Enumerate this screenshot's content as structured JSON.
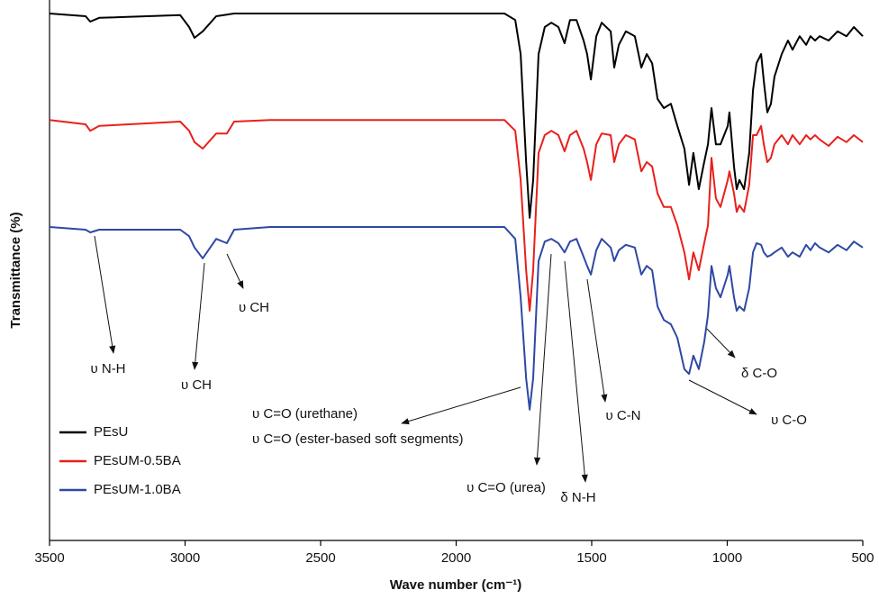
{
  "chart_data": {
    "type": "line",
    "xlabel": "Wave number (cm⁻¹)",
    "ylabel": "Transmittance (%)",
    "xlim": [
      3500,
      500
    ],
    "xticks": [
      3500,
      3000,
      2500,
      2000,
      1500,
      1000,
      500
    ],
    "ylim": [
      0,
      100
    ],
    "legend": "lower left",
    "x": [
      3500,
      3367,
      3350,
      3317,
      3018,
      2985,
      2965,
      2935,
      2885,
      2846,
      2819,
      2686,
      1822,
      1782,
      1762,
      1742,
      1729,
      1716,
      1696,
      1673,
      1649,
      1623,
      1600,
      1580,
      1556,
      1530,
      1517,
      1503,
      1483,
      1463,
      1430,
      1417,
      1400,
      1374,
      1341,
      1317,
      1297,
      1277,
      1257,
      1234,
      1208,
      1184,
      1158,
      1141,
      1125,
      1105,
      1085,
      1071,
      1058,
      1042,
      1025,
      998,
      992,
      975,
      965,
      955,
      938,
      919,
      905,
      892,
      875,
      865,
      852,
      839,
      826,
      799,
      776,
      759,
      733,
      709,
      693,
      676,
      659,
      626,
      593,
      560,
      533,
      500
    ],
    "series": [
      {
        "name": "PEsU",
        "color": "#000000",
        "values": [
          97.5,
          97,
          96,
          96.7,
          97.2,
          95,
          93,
          94.2,
          97,
          97.3,
          97.5,
          97.5,
          97.5,
          96.3,
          90,
          70,
          59.7,
          66.7,
          90,
          95,
          95.8,
          95,
          92,
          96.3,
          96.3,
          92.5,
          90,
          85.3,
          93.3,
          95.8,
          94.2,
          87.5,
          91.7,
          94.2,
          93.3,
          87.5,
          90,
          88.3,
          81.7,
          80,
          80.8,
          76.7,
          72.5,
          65.8,
          71.7,
          65,
          70,
          73.3,
          80,
          73.3,
          73.3,
          76.7,
          79.2,
          69.2,
          65,
          66.7,
          65,
          71.7,
          83.3,
          88.3,
          90,
          85,
          79.2,
          80.8,
          85.8,
          90,
          92.5,
          90.8,
          93.3,
          91.7,
          93.3,
          92.5,
          93.3,
          92.5,
          94.2,
          93.3,
          95,
          93.3
        ]
      },
      {
        "name": "PEsUM-0.5BA",
        "color": "#e8201c",
        "values": [
          77.8,
          77,
          75.8,
          76.7,
          77.5,
          75.8,
          73.7,
          72.5,
          75.3,
          75.3,
          77.5,
          77.8,
          77.8,
          75.8,
          66.7,
          50,
          42.5,
          50,
          71.7,
          75,
          75.8,
          75,
          72,
          75,
          75.8,
          72.5,
          70,
          66.7,
          73.3,
          75.3,
          75,
          70,
          73.3,
          75,
          74.2,
          68.3,
          70,
          69.2,
          64.2,
          61.7,
          61.7,
          58.3,
          53.3,
          48.3,
          53.3,
          50,
          55,
          58.3,
          70.8,
          63.3,
          61.7,
          66.7,
          68.3,
          64.2,
          60.8,
          62,
          60.8,
          65.8,
          75,
          75,
          76.7,
          73.3,
          70,
          70.8,
          73.3,
          75,
          73.3,
          75,
          73.3,
          75,
          74.2,
          75,
          74.2,
          73,
          74.7,
          73.7,
          75,
          73.7
        ]
      },
      {
        "name": "PEsUM-1.0BA",
        "color": "#2e48a4",
        "values": [
          58,
          57.5,
          57,
          57.5,
          57.5,
          56.3,
          54.2,
          52.2,
          55.8,
          55,
          57.5,
          58,
          58,
          55.8,
          45,
          30,
          24.2,
          30,
          51.7,
          55.3,
          55.8,
          55,
          53.3,
          55.3,
          55.8,
          52.5,
          50.8,
          49.2,
          53.7,
          55.8,
          54.2,
          51.7,
          53.7,
          54.7,
          54.2,
          49.2,
          50.8,
          50,
          43.3,
          40.8,
          40,
          37.5,
          31.7,
          30.8,
          34.2,
          31.7,
          36.7,
          41.7,
          50.8,
          46.7,
          45,
          49.2,
          50.8,
          45,
          42.5,
          43.3,
          42.5,
          46.7,
          53.3,
          55,
          54.7,
          53.3,
          52.5,
          52.8,
          53.3,
          54.2,
          52.5,
          53.3,
          52.5,
          54.7,
          53.7,
          55,
          54.2,
          53.3,
          54.7,
          53.7,
          55.3,
          54.2
        ]
      }
    ],
    "annotations": [
      "υ N-H",
      "υ CH",
      "υ CH",
      "υ C=O (urethane)",
      "υ C=O (ester-based soft segments)",
      "υ C=O (urea)",
      "δ N-H",
      "υ C-N",
      "υ C-O",
      "δ C-O"
    ]
  }
}
